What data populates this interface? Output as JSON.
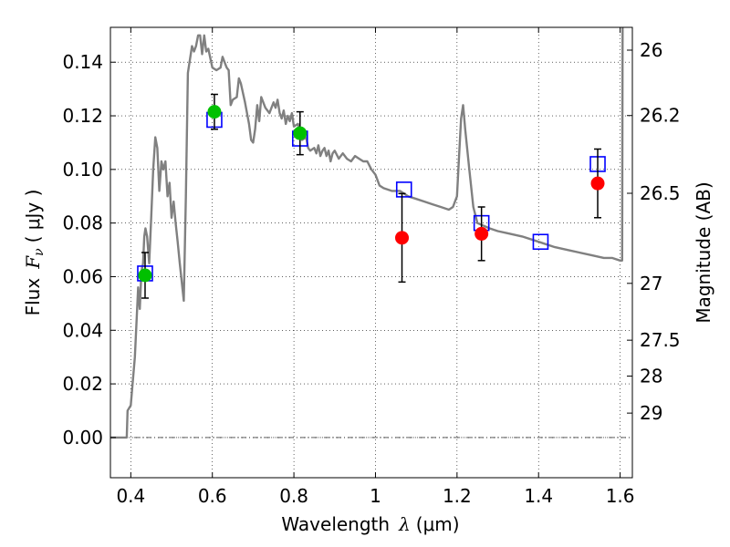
{
  "chart_data": {
    "type": "scatter",
    "xlabel_text": "Wavelength",
    "xlabel_symbol": "λ",
    "xlabel_unit": "(μm)",
    "ylabel_text": "Flux",
    "ylabel_symbol": "F",
    "ylabel_subscript": "ν",
    "ylabel_unit": "( μJy )",
    "y2label": "Magnitude (AB)",
    "xlim": [
      0.35,
      1.63
    ],
    "ylim": [
      -0.015,
      0.153
    ],
    "grid": true,
    "x_ticks": [
      {
        "value": 0.4,
        "label": "0.4"
      },
      {
        "value": 0.6,
        "label": "0.6"
      },
      {
        "value": 0.8,
        "label": "0.8"
      },
      {
        "value": 1.0,
        "label": "1"
      },
      {
        "value": 1.2,
        "label": "1.2"
      },
      {
        "value": 1.4,
        "label": "1.4"
      },
      {
        "value": 1.6,
        "label": "1.6"
      }
    ],
    "y_ticks": [
      {
        "value": 0.0,
        "label": "0.00"
      },
      {
        "value": 0.02,
        "label": "0.02"
      },
      {
        "value": 0.04,
        "label": "0.04"
      },
      {
        "value": 0.06,
        "label": "0.06"
      },
      {
        "value": 0.08,
        "label": "0.08"
      },
      {
        "value": 0.1,
        "label": "0.10"
      },
      {
        "value": 0.12,
        "label": "0.12"
      },
      {
        "value": 0.14,
        "label": "0.14"
      }
    ],
    "y2_ticks": [
      {
        "flux": 0.1445,
        "label": "26"
      },
      {
        "flux": 0.1201,
        "label": "26.2"
      },
      {
        "flux": 0.0911,
        "label": "26.5"
      },
      {
        "flux": 0.0575,
        "label": "27"
      },
      {
        "flux": 0.0363,
        "label": "27.5"
      },
      {
        "flux": 0.0229,
        "label": "28"
      },
      {
        "flux": 0.0091,
        "label": "29"
      }
    ],
    "series": [
      {
        "marker": "line",
        "color": "#808080",
        "points": [
          [
            0.35,
            0.0
          ],
          [
            0.39,
            0.0
          ],
          [
            0.392,
            0.01
          ],
          [
            0.4,
            0.012
          ],
          [
            0.41,
            0.03
          ],
          [
            0.418,
            0.056
          ],
          [
            0.422,
            0.048
          ],
          [
            0.426,
            0.062
          ],
          [
            0.43,
            0.065
          ],
          [
            0.433,
            0.075
          ],
          [
            0.436,
            0.078
          ],
          [
            0.44,
            0.075
          ],
          [
            0.445,
            0.065
          ],
          [
            0.45,
            0.082
          ],
          [
            0.455,
            0.1
          ],
          [
            0.46,
            0.112
          ],
          [
            0.465,
            0.108
          ],
          [
            0.47,
            0.092
          ],
          [
            0.475,
            0.103
          ],
          [
            0.48,
            0.1
          ],
          [
            0.485,
            0.103
          ],
          [
            0.49,
            0.09
          ],
          [
            0.495,
            0.095
          ],
          [
            0.5,
            0.082
          ],
          [
            0.505,
            0.088
          ],
          [
            0.51,
            0.08
          ],
          [
            0.515,
            0.073
          ],
          [
            0.52,
            0.065
          ],
          [
            0.53,
            0.051
          ],
          [
            0.535,
            0.09
          ],
          [
            0.54,
            0.136
          ],
          [
            0.55,
            0.146
          ],
          [
            0.555,
            0.144
          ],
          [
            0.56,
            0.146
          ],
          [
            0.565,
            0.15
          ],
          [
            0.57,
            0.15
          ],
          [
            0.575,
            0.143
          ],
          [
            0.58,
            0.15
          ],
          [
            0.585,
            0.144
          ],
          [
            0.59,
            0.145
          ],
          [
            0.6,
            0.138
          ],
          [
            0.61,
            0.137
          ],
          [
            0.62,
            0.138
          ],
          [
            0.625,
            0.142
          ],
          [
            0.63,
            0.14
          ],
          [
            0.635,
            0.138
          ],
          [
            0.64,
            0.137
          ],
          [
            0.645,
            0.124
          ],
          [
            0.65,
            0.126
          ],
          [
            0.66,
            0.127
          ],
          [
            0.665,
            0.134
          ],
          [
            0.67,
            0.132
          ],
          [
            0.68,
            0.125
          ],
          [
            0.69,
            0.117
          ],
          [
            0.695,
            0.111
          ],
          [
            0.7,
            0.11
          ],
          [
            0.705,
            0.115
          ],
          [
            0.71,
            0.124
          ],
          [
            0.715,
            0.118
          ],
          [
            0.72,
            0.127
          ],
          [
            0.73,
            0.123
          ],
          [
            0.74,
            0.121
          ],
          [
            0.745,
            0.123
          ],
          [
            0.75,
            0.125
          ],
          [
            0.755,
            0.123
          ],
          [
            0.76,
            0.126
          ],
          [
            0.765,
            0.121
          ],
          [
            0.77,
            0.119
          ],
          [
            0.775,
            0.122
          ],
          [
            0.78,
            0.117
          ],
          [
            0.785,
            0.12
          ],
          [
            0.79,
            0.118
          ],
          [
            0.795,
            0.121
          ],
          [
            0.8,
            0.116
          ],
          [
            0.81,
            0.117
          ],
          [
            0.82,
            0.111
          ],
          [
            0.83,
            0.112
          ],
          [
            0.835,
            0.108
          ],
          [
            0.84,
            0.107
          ],
          [
            0.85,
            0.108
          ],
          [
            0.855,
            0.106
          ],
          [
            0.86,
            0.109
          ],
          [
            0.865,
            0.105
          ],
          [
            0.87,
            0.107
          ],
          [
            0.875,
            0.108
          ],
          [
            0.88,
            0.105
          ],
          [
            0.885,
            0.107
          ],
          [
            0.89,
            0.103
          ],
          [
            0.895,
            0.106
          ],
          [
            0.9,
            0.107
          ],
          [
            0.91,
            0.104
          ],
          [
            0.915,
            0.105
          ],
          [
            0.92,
            0.106
          ],
          [
            0.93,
            0.104
          ],
          [
            0.94,
            0.103
          ],
          [
            0.95,
            0.105
          ],
          [
            0.96,
            0.104
          ],
          [
            0.97,
            0.103
          ],
          [
            0.98,
            0.103
          ],
          [
            0.99,
            0.1
          ],
          [
            1.0,
            0.098
          ],
          [
            1.01,
            0.094
          ],
          [
            1.02,
            0.093
          ],
          [
            1.04,
            0.092
          ],
          [
            1.06,
            0.092
          ],
          [
            1.08,
            0.09
          ],
          [
            1.1,
            0.089
          ],
          [
            1.12,
            0.088
          ],
          [
            1.14,
            0.087
          ],
          [
            1.16,
            0.086
          ],
          [
            1.18,
            0.085
          ],
          [
            1.19,
            0.086
          ],
          [
            1.2,
            0.09
          ],
          [
            1.205,
            0.105
          ],
          [
            1.21,
            0.119
          ],
          [
            1.215,
            0.124
          ],
          [
            1.22,
            0.115
          ],
          [
            1.23,
            0.1
          ],
          [
            1.24,
            0.086
          ],
          [
            1.25,
            0.08
          ],
          [
            1.28,
            0.078
          ],
          [
            1.3,
            0.077
          ],
          [
            1.33,
            0.076
          ],
          [
            1.36,
            0.075
          ],
          [
            1.4,
            0.073
          ],
          [
            1.44,
            0.071
          ],
          [
            1.47,
            0.07
          ],
          [
            1.5,
            0.069
          ],
          [
            1.53,
            0.068
          ],
          [
            1.56,
            0.067
          ],
          [
            1.58,
            0.067
          ],
          [
            1.6,
            0.066
          ],
          [
            1.605,
            0.066
          ],
          [
            1.606,
            0.153
          ]
        ]
      },
      {
        "marker": "circle",
        "color": "#00c000",
        "points": [
          {
            "x": 0.435,
            "y": 0.0605,
            "err": 0.0085
          },
          {
            "x": 0.605,
            "y": 0.1215,
            "err": 0.0065
          },
          {
            "x": 0.815,
            "y": 0.1135,
            "err": 0.008
          }
        ]
      },
      {
        "marker": "circle",
        "color": "#ff0000",
        "points": [
          {
            "x": 1.065,
            "y": 0.0745,
            "err": 0.0165
          },
          {
            "x": 1.26,
            "y": 0.076,
            "err": 0.01
          },
          {
            "x": 1.545,
            "y": 0.0948,
            "err": 0.0128
          }
        ]
      },
      {
        "marker": "square",
        "color": "#0000ff",
        "points": [
          {
            "x": 0.435,
            "y": 0.0612
          },
          {
            "x": 0.605,
            "y": 0.1185
          },
          {
            "x": 0.815,
            "y": 0.1115
          },
          {
            "x": 1.07,
            "y": 0.0925
          },
          {
            "x": 1.26,
            "y": 0.08
          },
          {
            "x": 1.405,
            "y": 0.073
          },
          {
            "x": 1.545,
            "y": 0.102
          }
        ]
      }
    ]
  }
}
